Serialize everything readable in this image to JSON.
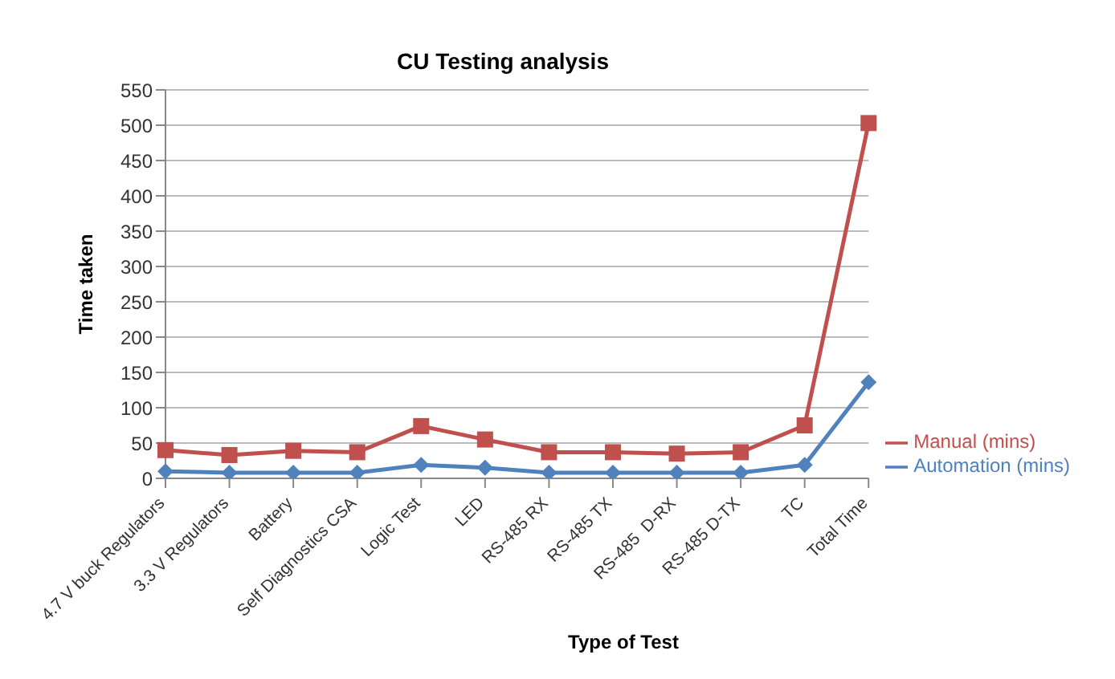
{
  "chart_data": {
    "type": "line",
    "title": "CU Testing analysis",
    "xlabel": "Type of Test",
    "ylabel": "Time taken",
    "categories": [
      "4.7 V buck Regulators",
      "3.3 V Regulators",
      "Battery",
      "Self Diagnostics CSA",
      "Logic Test",
      "LED",
      "RS-485 RX",
      "RS-485 TX",
      "RS-485  D-RX",
      "RS-485 D-TX",
      "TC",
      "Total Time"
    ],
    "series": [
      {
        "name": "Manual (mins)",
        "color": "#c0504d",
        "marker": "square",
        "values": [
          40,
          33,
          39,
          37,
          74,
          55,
          37,
          37,
          35,
          37,
          75,
          503
        ]
      },
      {
        "name": "Automation (mins)",
        "color": "#4f81bd",
        "marker": "diamond",
        "values": [
          10,
          8,
          8,
          8,
          19,
          15,
          8,
          8,
          8,
          8,
          19,
          136
        ]
      }
    ],
    "ylim": [
      0,
      550
    ],
    "yticks": [
      0,
      50,
      100,
      150,
      200,
      250,
      300,
      350,
      400,
      450,
      500,
      550
    ],
    "grid": "y",
    "legend": "right"
  }
}
